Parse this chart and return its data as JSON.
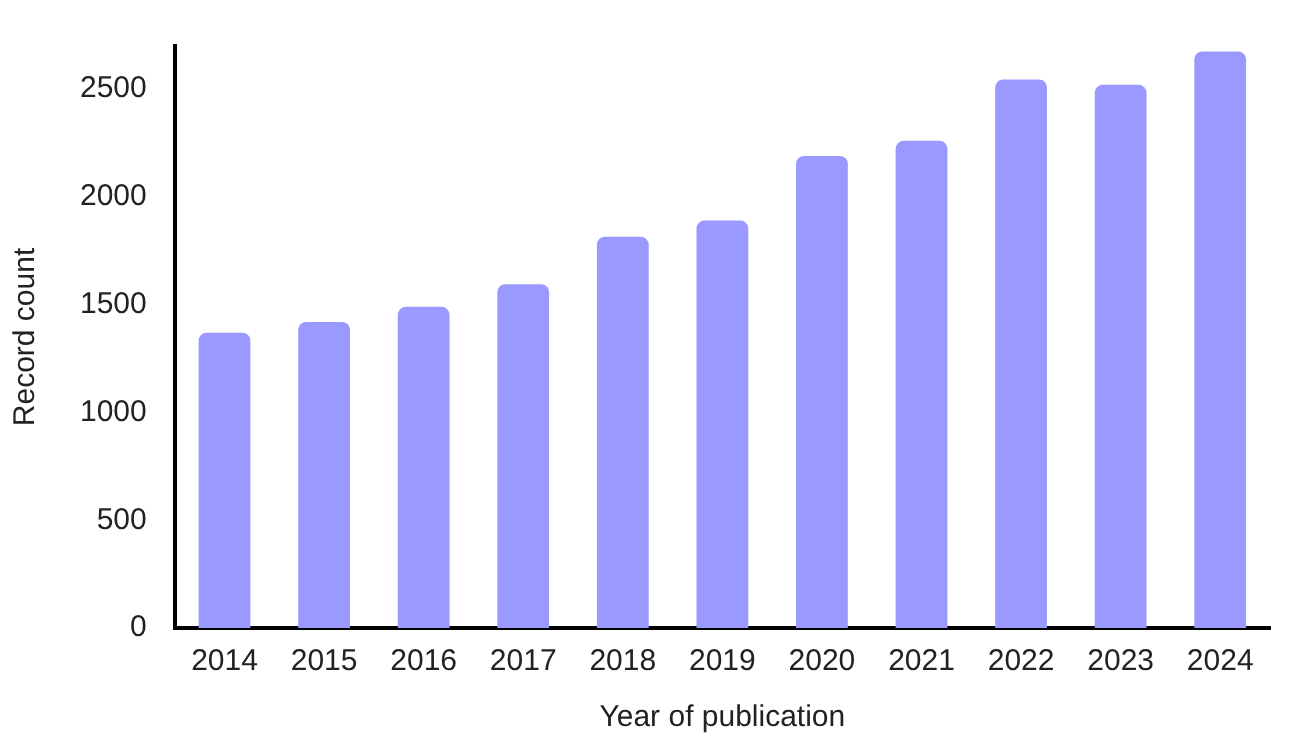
{
  "chart_data": {
    "type": "bar",
    "xlabel": "Year of publication",
    "ylabel": "Record count",
    "categories": [
      "2014",
      "2015",
      "2016",
      "2017",
      "2018",
      "2019",
      "2020",
      "2021",
      "2022",
      "2023",
      "2024"
    ],
    "values": [
      1370,
      1420,
      1490,
      1595,
      1815,
      1890,
      2190,
      2260,
      2545,
      2520,
      2675
    ],
    "color": "#9999ff",
    "ylim": [
      0,
      2700
    ],
    "yticks": [
      0,
      500,
      1000,
      1500,
      2000,
      2500
    ],
    "grid": false,
    "legend": false
  }
}
